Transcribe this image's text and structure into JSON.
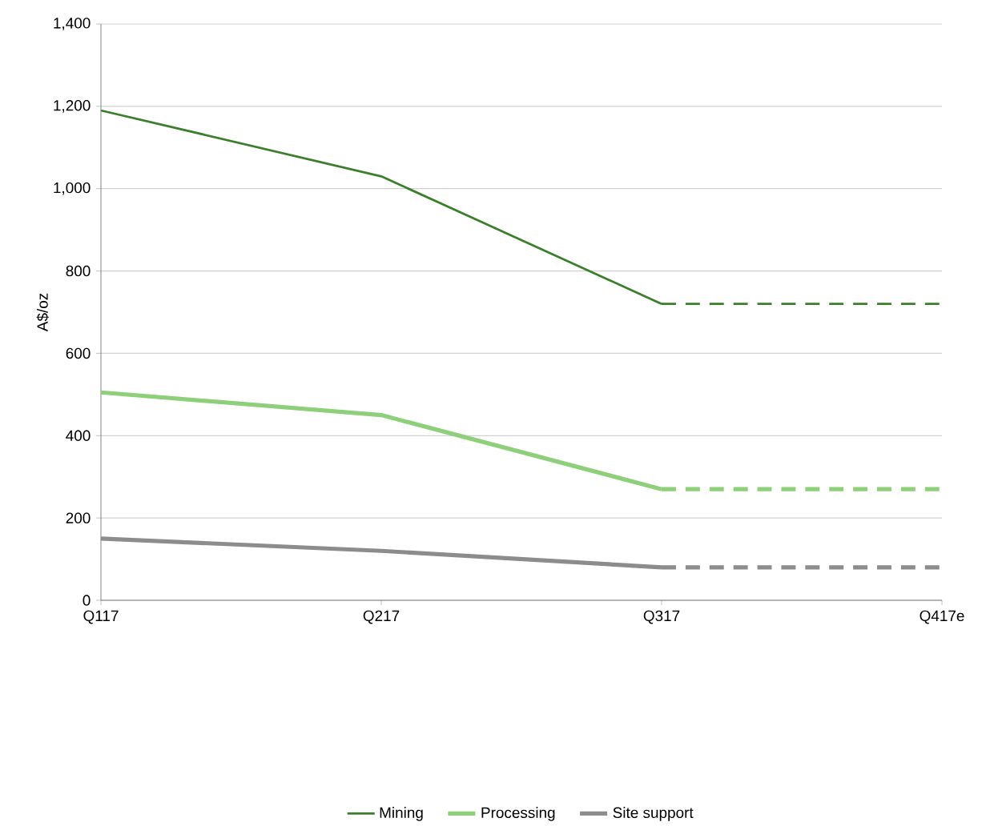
{
  "chart_data": {
    "type": "line",
    "ylabel": "A$/oz",
    "categories": [
      "Q117",
      "Q217",
      "Q317",
      "Q417e"
    ],
    "ylim": [
      0,
      1400
    ],
    "yticks": [
      0,
      200,
      400,
      600,
      800,
      {
        "value": 1000,
        "label": "1,000"
      },
      {
        "value": 1200,
        "label": "1,200"
      },
      {
        "value": 1400,
        "label": "1,400"
      }
    ],
    "grid": "y",
    "legend": "bottom",
    "marker": "none",
    "series": [
      {
        "name": "Mining",
        "color": "#3b7f2d",
        "values": [
          1190,
          1030,
          720,
          null
        ],
        "line_style": "solid"
      },
      {
        "name": "Processing",
        "color": "#8ecf7a",
        "values": [
          505,
          450,
          270,
          null
        ],
        "line_style": "solid"
      },
      {
        "name": "Site support",
        "color": "#8c8c8c",
        "values": [
          150,
          120,
          80,
          null
        ],
        "line_style": "solid"
      },
      {
        "color": "#3b7f2d",
        "values": [
          null,
          null,
          720,
          720
        ],
        "line_style": "dashed"
      },
      {
        "color": "#8ecf7a",
        "values": [
          null,
          null,
          270,
          270
        ],
        "line_style": "dashed"
      },
      {
        "color": "#8c8c8c",
        "values": [
          null,
          null,
          80,
          80
        ],
        "line_style": "dashed"
      }
    ]
  }
}
